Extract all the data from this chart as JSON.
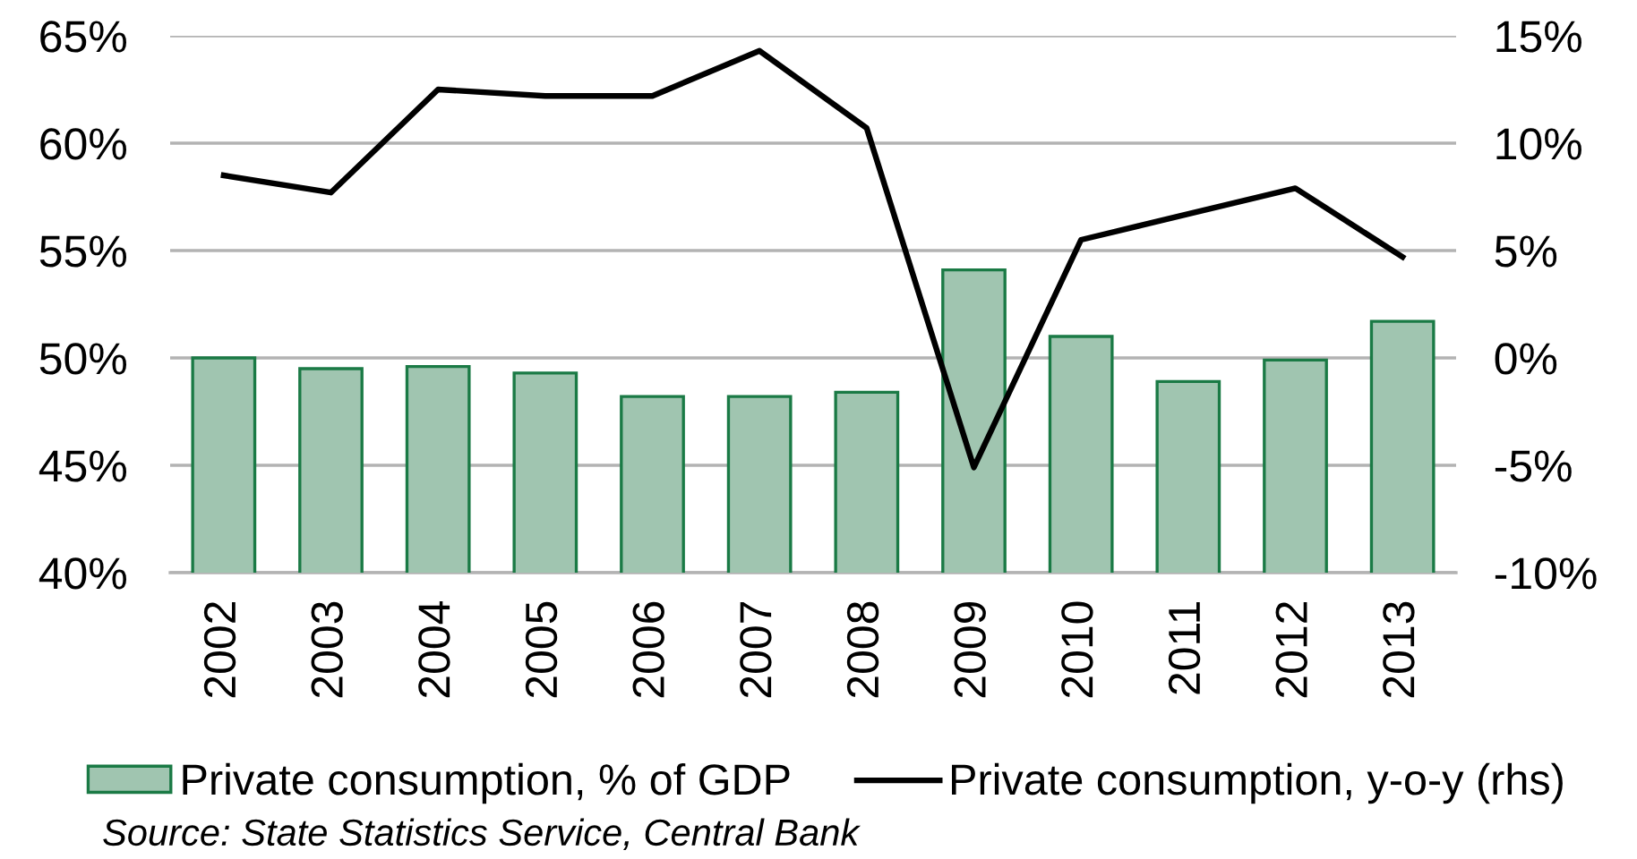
{
  "chart_data": {
    "type": "bar",
    "categories": [
      "2002",
      "2003",
      "2004",
      "2005",
      "2006",
      "2007",
      "2008",
      "2009",
      "2010",
      "2011",
      "2012",
      "2013"
    ],
    "series": [
      {
        "name": "Private consumption, % of GDP",
        "color": "#a0c5b0",
        "values": [
          50.0,
          49.5,
          49.6,
          49.3,
          48.2,
          48.2,
          48.4,
          54.1,
          51.0,
          48.9,
          49.9,
          51.7
        ]
      },
      {
        "name": "Private consumption, y-o-y (rhs)",
        "type": "line",
        "axis": "y2",
        "color": "#000000",
        "values": [
          8.5,
          7.7,
          12.5,
          12.2,
          12.2,
          14.3,
          10.7,
          -5.1,
          5.5,
          6.7,
          7.9,
          4.7
        ]
      }
    ],
    "ylim": [
      40,
      65
    ],
    "yticks": [
      {
        "value": 40,
        "label": "40%"
      },
      {
        "value": 45,
        "label": "45%"
      },
      {
        "value": 50,
        "label": "50%"
      },
      {
        "value": 55,
        "label": "55%"
      },
      {
        "value": 60,
        "label": "60%"
      },
      {
        "value": 65,
        "label": "65%"
      }
    ],
    "y2lim": [
      -10,
      15
    ],
    "y2ticks": [
      {
        "value": -10,
        "label": "-10%"
      },
      {
        "value": -5,
        "label": "-5%"
      },
      {
        "value": 0,
        "label": "0%"
      },
      {
        "value": 5,
        "label": "5%"
      },
      {
        "value": 10,
        "label": "10%"
      },
      {
        "value": 15,
        "label": "15%"
      }
    ],
    "grid": "y",
    "legend": "bottom",
    "annotations": [
      "Source: State Statistics Service, Central Bank"
    ]
  }
}
